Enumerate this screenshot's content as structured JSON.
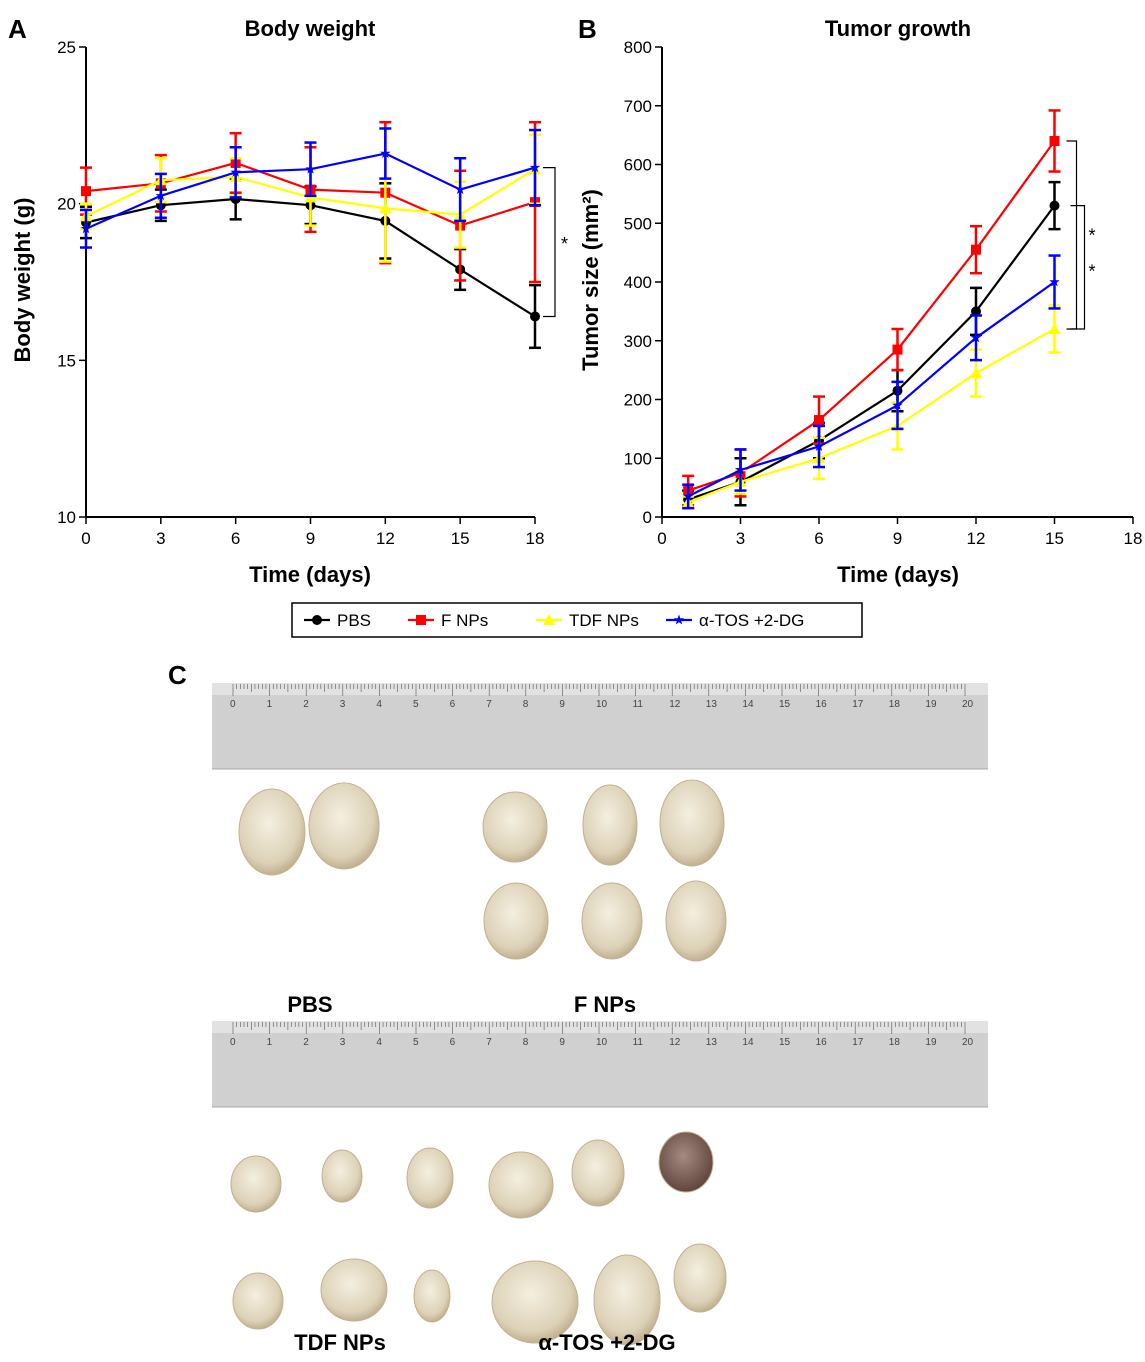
{
  "panels": {
    "a": "A",
    "b": "B",
    "c": "C"
  },
  "chart_data": [
    {
      "type": "line",
      "title": "Body weight",
      "xlabel": "Time (days)",
      "ylabel": "Body weight (g)",
      "xlim": [
        0,
        18
      ],
      "ylim": [
        10,
        25
      ],
      "xticks": [
        0,
        3,
        6,
        9,
        12,
        15,
        18
      ],
      "yticks": [
        10,
        15,
        20,
        25
      ],
      "x": [
        0,
        3,
        6,
        9,
        12,
        15,
        18
      ],
      "series": [
        {
          "name": "PBS",
          "color": "#000000",
          "marker": "circle",
          "values": [
            19.4,
            19.95,
            20.15,
            19.95,
            19.45,
            17.9,
            16.4
          ],
          "errors": [
            0.5,
            0.5,
            0.65,
            0.6,
            1.2,
            0.65,
            1.0
          ]
        },
        {
          "name": "F NPs",
          "color": "#ff0000",
          "marker": "square",
          "values": [
            20.4,
            20.65,
            21.3,
            20.45,
            20.35,
            19.3,
            20.05
          ],
          "errors": [
            0.75,
            0.9,
            0.95,
            1.35,
            2.25,
            1.75,
            2.55
          ]
        },
        {
          "name": "TDF NPs",
          "color": "#ffff00",
          "marker": "triangle",
          "values": [
            19.6,
            20.75,
            20.85,
            20.2,
            19.85,
            19.65,
            21.1
          ],
          "errors": [
            0.4,
            0.7,
            0.6,
            0.9,
            1.7,
            1.05,
            1.1
          ]
        },
        {
          "name": "α-TOS +2-DG",
          "color": "#0000ff",
          "marker": "star",
          "values": [
            19.2,
            20.25,
            21.0,
            21.1,
            21.6,
            20.45,
            21.15
          ],
          "errors": [
            0.6,
            0.7,
            0.8,
            0.85,
            0.8,
            1.0,
            1.2
          ]
        }
      ],
      "annotations": [
        "*"
      ]
    },
    {
      "type": "line",
      "title": "Tumor growth",
      "xlabel": "Time (days)",
      "ylabel": "Tumor size (mm²)",
      "xlim": [
        0,
        18
      ],
      "ylim": [
        0,
        800
      ],
      "xticks": [
        0,
        3,
        6,
        9,
        12,
        15,
        18
      ],
      "yticks": [
        0,
        100,
        200,
        300,
        400,
        500,
        600,
        700,
        800
      ],
      "x": [
        1,
        3,
        6,
        9,
        12,
        15
      ],
      "series": [
        {
          "name": "PBS",
          "color": "#000000",
          "marker": "circle",
          "values": [
            30,
            60,
            130,
            215,
            350,
            530
          ],
          "errors": [
            15,
            40,
            30,
            35,
            40,
            40
          ]
        },
        {
          "name": "F NPs",
          "color": "#ff0000",
          "marker": "square",
          "values": [
            45,
            75,
            165,
            285,
            455,
            640
          ],
          "errors": [
            25,
            40,
            40,
            35,
            40,
            52
          ]
        },
        {
          "name": "TDF NPs",
          "color": "#ffff00",
          "marker": "triangle",
          "values": [
            25,
            60,
            100,
            155,
            245,
            320
          ],
          "errors": [
            10,
            20,
            35,
            40,
            40,
            40
          ]
        },
        {
          "name": "α-TOS +2-DG",
          "color": "#0000ff",
          "marker": "star",
          "values": [
            35,
            80,
            120,
            190,
            305,
            400
          ],
          "errors": [
            20,
            35,
            35,
            40,
            38,
            45
          ]
        }
      ],
      "annotations": [
        "*",
        "*"
      ]
    }
  ],
  "legend": {
    "items": [
      {
        "label": "PBS",
        "color": "#000000",
        "marker": "circle"
      },
      {
        "label": "F NPs",
        "color": "#ff0000",
        "marker": "square"
      },
      {
        "label": "TDF NPs",
        "color": "#ffff00",
        "marker": "triangle"
      },
      {
        "label": "α-TOS +2-DG",
        "color": "#0000ff",
        "marker": "star"
      }
    ]
  },
  "photos": {
    "labels": {
      "pbs": "PBS",
      "fnps": "F NPs",
      "tdf": "TDF NPs",
      "atos": "α-TOS +2-DG"
    },
    "ruler_numbers": [
      "0",
      "1",
      "2",
      "3",
      "4",
      "5",
      "6",
      "7",
      "8",
      "9",
      "10",
      "11",
      "12",
      "13",
      "14",
      "15",
      "16",
      "17",
      "18",
      "19",
      "20"
    ]
  }
}
